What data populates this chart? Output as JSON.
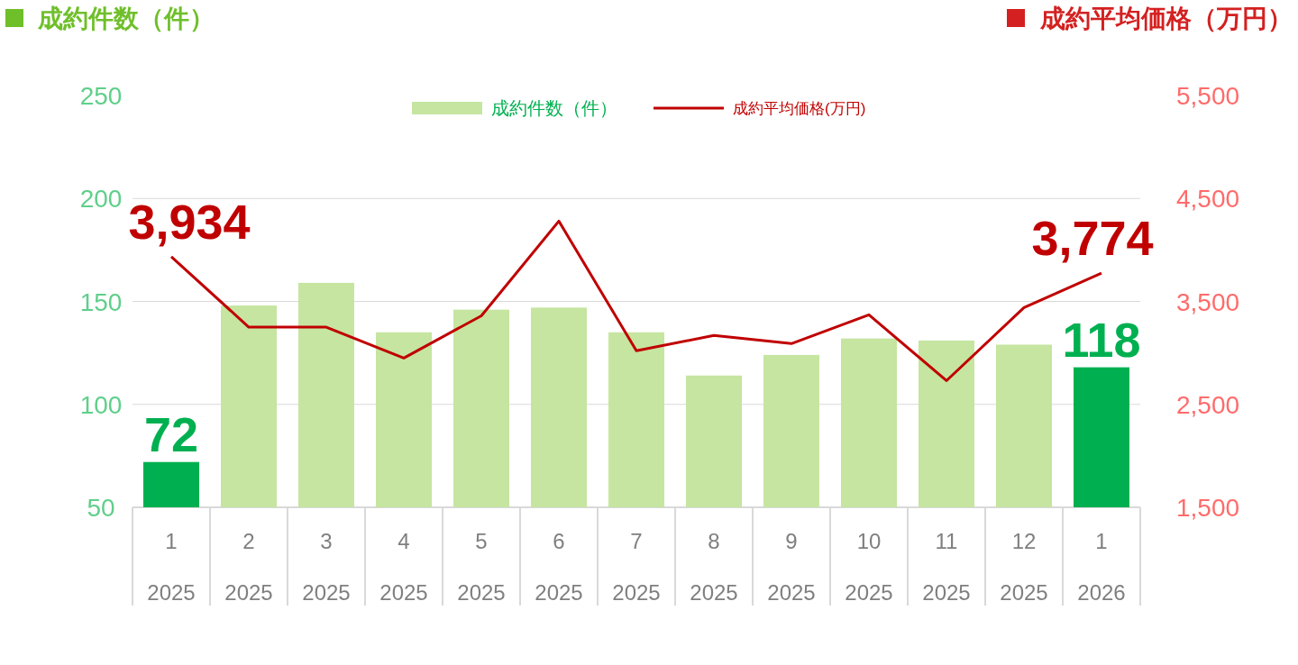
{
  "chart_data": {
    "type": "bar",
    "ylabel": "成約件数（件）",
    "y2label": "成約平均価格（万円）",
    "categories": [
      "1\n2025",
      "2\n2025",
      "3\n2025",
      "4\n2025",
      "5\n2025",
      "6\n2025",
      "7\n2025",
      "8\n2025",
      "9\n2025",
      "10\n2025",
      "11\n2025",
      "12\n2025",
      "1\n2026"
    ],
    "series": [
      {
        "name": "成約件数（件）",
        "color": "#c5e5a0",
        "colors": [
          "#00b050",
          "#c5e5a0",
          "#c5e5a0",
          "#c5e5a0",
          "#c5e5a0",
          "#c5e5a0",
          "#c5e5a0",
          "#c5e5a0",
          "#c5e5a0",
          "#c5e5a0",
          "#c5e5a0",
          "#c5e5a0",
          "#00b050"
        ],
        "values": [
          72,
          148,
          159,
          135,
          146,
          147,
          135,
          114,
          124,
          132,
          131,
          129,
          118
        ],
        "value_labels": [
          "72",
          null,
          null,
          null,
          null,
          null,
          null,
          null,
          null,
          null,
          null,
          null,
          "118"
        ]
      },
      {
        "name": "成約平均価格(万円)",
        "type": "line",
        "axis": "y2",
        "color": "#c00000",
        "values": [
          3934,
          3250,
          3250,
          2950,
          3360,
          4280,
          3020,
          3170,
          3090,
          3370,
          2730,
          3440,
          3774
        ],
        "value_labels": [
          "3,934",
          null,
          null,
          null,
          null,
          null,
          null,
          null,
          null,
          null,
          null,
          null,
          "3,774"
        ]
      }
    ],
    "ylim": [
      50,
      250
    ],
    "yticks": [
      50,
      100,
      150,
      200,
      250
    ],
    "y2lim": [
      1500,
      5500
    ],
    "y2ticks": [
      {
        "value": 1500,
        "label": "1,500"
      },
      {
        "value": 2500,
        "label": "2,500"
      },
      {
        "value": 3500,
        "label": "3,500"
      },
      {
        "value": 4500,
        "label": "4,500"
      },
      {
        "value": 5500,
        "label": "5,500"
      }
    ],
    "grid": "y",
    "legend": "top"
  }
}
